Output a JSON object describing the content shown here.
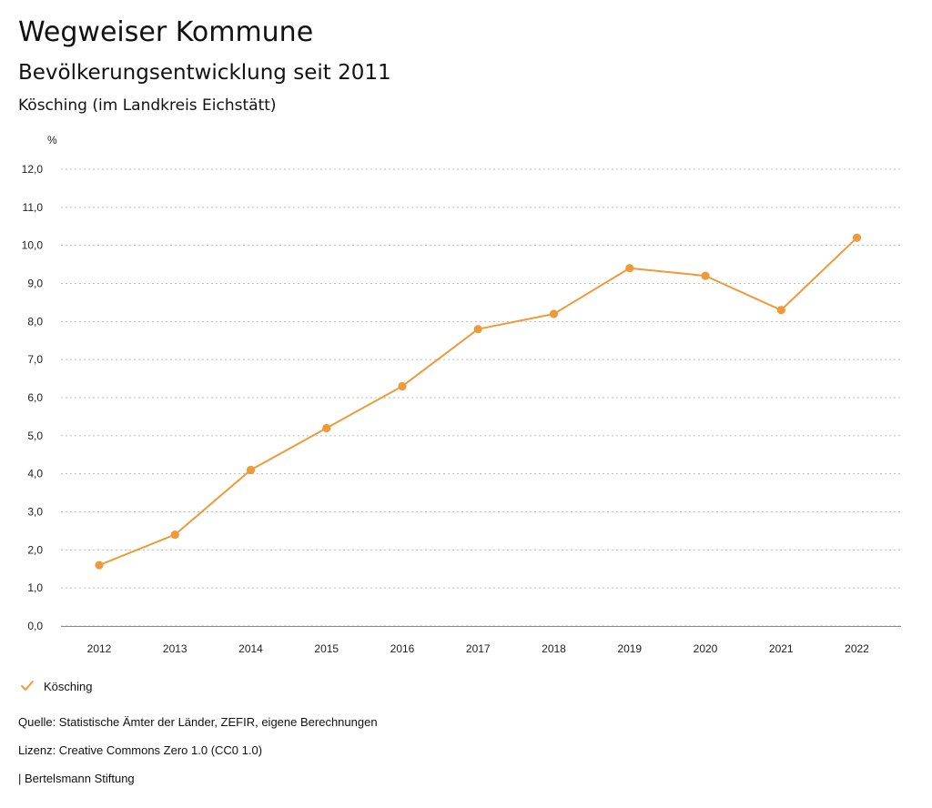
{
  "header": {
    "title": "Wegweiser Kommune",
    "subtitle": "Bevölkerungsentwicklung seit 2011",
    "region": "Kösching (im Landkreis Eichstätt)"
  },
  "legend": {
    "label": "Kösching",
    "icon": "check-icon"
  },
  "footer": {
    "source": "Quelle: Statistische Ämter der Länder, ZEFIR, eigene Berechnungen",
    "license": "Lizenz: Creative Commons Zero 1.0 (CC0 1.0)",
    "brand": "| Bertelsmann Stiftung"
  },
  "colors": {
    "series": "#ee9a3a",
    "grid": "#bdbdbd",
    "axis": "#8a8a8a"
  },
  "chart_data": {
    "type": "line",
    "title": "Bevölkerungsentwicklung seit 2011",
    "xlabel": "",
    "ylabel": "%",
    "categories": [
      "2012",
      "2013",
      "2014",
      "2015",
      "2016",
      "2017",
      "2018",
      "2019",
      "2020",
      "2021",
      "2022"
    ],
    "ylim": [
      0,
      12
    ],
    "yticks": [
      0,
      1,
      2,
      3,
      4,
      5,
      6,
      7,
      8,
      9,
      10,
      11,
      12
    ],
    "ytick_labels": [
      "0,0",
      "1,0",
      "2,0",
      "3,0",
      "4,0",
      "5,0",
      "6,0",
      "7,0",
      "8,0",
      "9,0",
      "10,0",
      "11,0",
      "12,0"
    ],
    "grid": true,
    "legend_position": "bottom-left",
    "series": [
      {
        "name": "Kösching",
        "values": [
          1.6,
          2.4,
          4.1,
          5.2,
          6.3,
          7.8,
          8.2,
          9.4,
          9.2,
          8.3,
          10.2
        ]
      }
    ]
  }
}
